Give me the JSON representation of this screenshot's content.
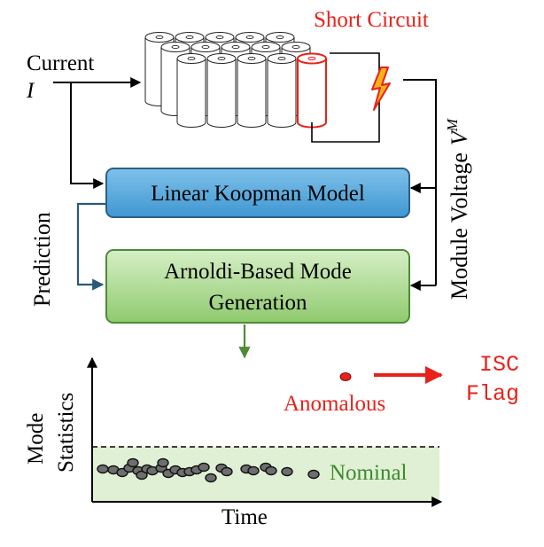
{
  "inputs": {
    "current_label": "Current",
    "current_symbol": "I"
  },
  "battery": {
    "fault_label": "Short Circuit",
    "fault_icon": "lightning-bolt-icon"
  },
  "voltage": {
    "label": "Module Voltage",
    "symbol": "V",
    "superscript": "M"
  },
  "blocks": {
    "koopman": {
      "label": "Linear Koopman Model",
      "fill_top": "#7fc1ea",
      "fill_bottom": "#3f97d1",
      "stroke": "#2d5f86"
    },
    "arnoldi": {
      "line1": "Arnoldi-Based Mode",
      "line2": "Generation",
      "fill_top": "#d6efc6",
      "fill_bottom": "#8fca6e",
      "stroke": "#4f8a36"
    }
  },
  "prediction_label": "Prediction",
  "plot": {
    "ylabel_line1": "Mode",
    "ylabel_line2": "Statistics",
    "xlabel": "Time",
    "nominal_label": "Nominal",
    "anomalous_label": "Anomalous",
    "flag_line1": "ISC",
    "flag_line2": "Flag"
  },
  "colors": {
    "fault": "#e8211a",
    "nominal_band": "#dff0d4",
    "nominal_text": "#3e8a2f",
    "arrow_dark": "#000000",
    "arrow_teal": "#2b5a78",
    "arrow_green": "#4f8a36",
    "point_fill": "#6e6e6e"
  }
}
